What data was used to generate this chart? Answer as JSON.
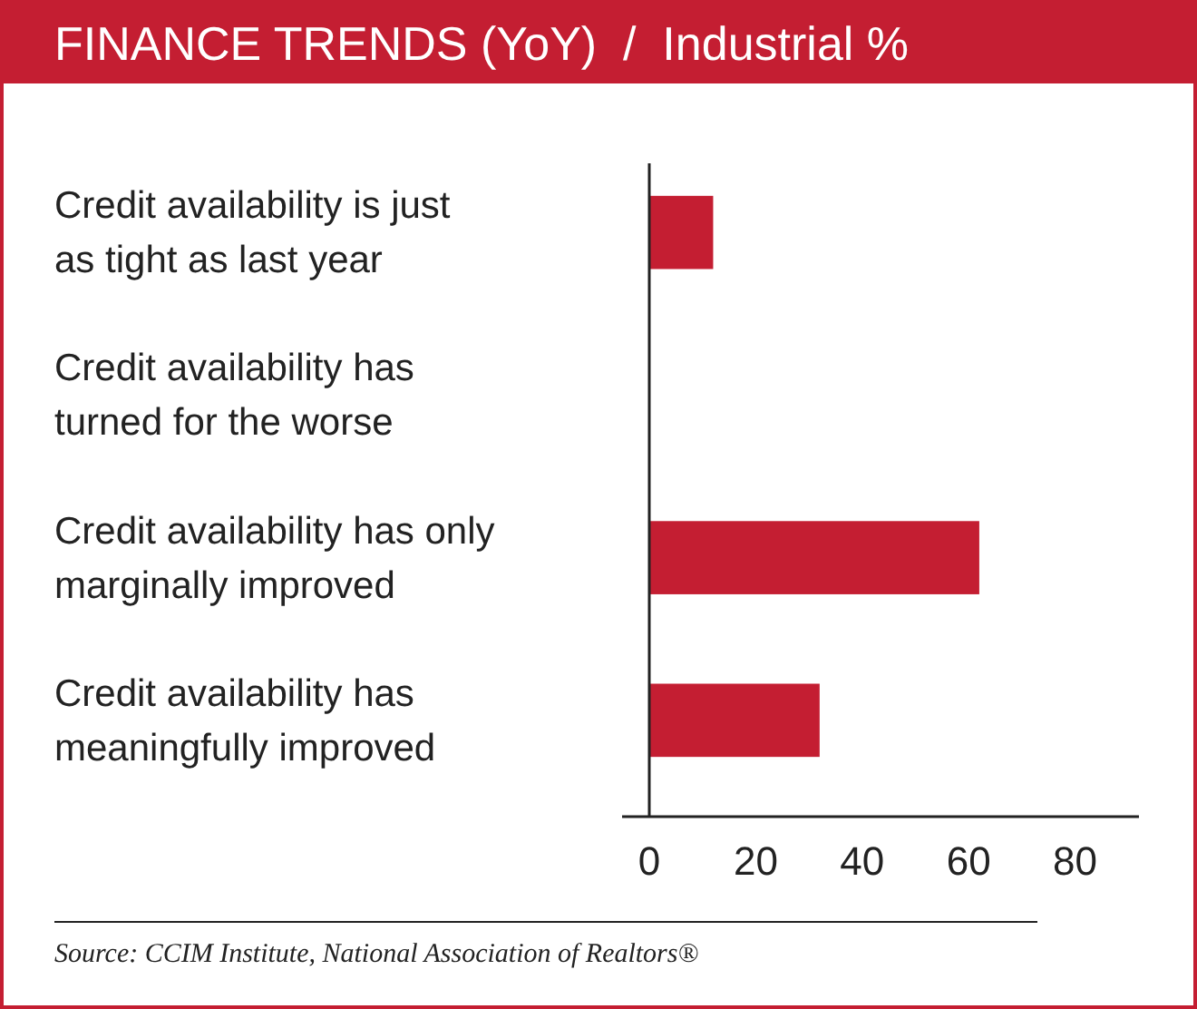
{
  "chart_data": {
    "type": "bar",
    "orientation": "horizontal",
    "title": "FINANCE TRENDS (YoY)  /  Industrial %",
    "categories": [
      "Credit availability is just as tight as last year",
      "Credit availability has turned for the worse",
      "Credit availability has only marginally improved",
      "Credit availability has meaningfully improved"
    ],
    "values": [
      12,
      0,
      62,
      32
    ],
    "color": "#c41e32",
    "xlim": [
      0,
      92
    ],
    "xticks": [
      0,
      20,
      40,
      60,
      80
    ],
    "grid": false,
    "annotations": [
      "Source: CCIM Institute, National Association of Realtors®"
    ]
  }
}
